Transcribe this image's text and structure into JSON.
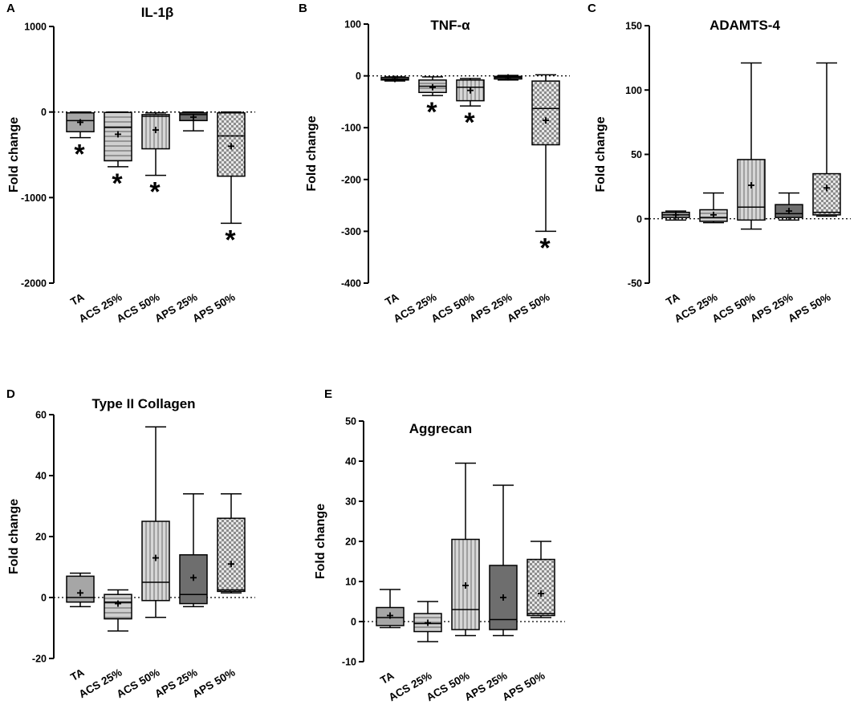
{
  "chart_data": [
    {
      "type": "box",
      "panel": "A",
      "title": "IL-1β",
      "ylabel": "Fold change",
      "xlabel": "",
      "ylim": [
        -2000,
        1000
      ],
      "yticks": [
        1000,
        0,
        -1000,
        -2000
      ],
      "yticklabels": [
        "1000",
        "0",
        "-1000",
        "-2000"
      ],
      "reference_line": 0,
      "categories": [
        "TA",
        "ACS 25%",
        "ACS 50%",
        "APS 25%",
        "APS 50%"
      ],
      "series": [
        {
          "name": "TA",
          "min": -300,
          "q1": -230,
          "median": -100,
          "q3": -10,
          "max": 0,
          "mean": -120,
          "fill": "#a6a6a6",
          "pattern": "solid",
          "significant": true
        },
        {
          "name": "ACS 25%",
          "min": -640,
          "q1": -570,
          "median": -180,
          "q3": -5,
          "max": 0,
          "mean": -260,
          "fill": "#bdbdbd",
          "pattern": "horizontal",
          "significant": true
        },
        {
          "name": "ACS 50%",
          "min": -740,
          "q1": -430,
          "median": -50,
          "q3": -30,
          "max": -10,
          "mean": -210,
          "fill": "#bdbdbd",
          "pattern": "vertical",
          "significant": true
        },
        {
          "name": "APS 25%",
          "min": -220,
          "q1": -100,
          "median": -30,
          "q3": -10,
          "max": 0,
          "mean": -60,
          "fill": "#6e6e6e",
          "pattern": "solid",
          "significant": false
        },
        {
          "name": "APS 50%",
          "min": -1300,
          "q1": -750,
          "median": -280,
          "q3": -10,
          "max": 0,
          "mean": -400,
          "fill": "#d9d9d9",
          "pattern": "checker",
          "significant": true
        }
      ]
    },
    {
      "type": "box",
      "panel": "B",
      "title": "TNF-α",
      "ylabel": "Fold change",
      "xlabel": "",
      "ylim": [
        -400,
        100
      ],
      "yticks": [
        100,
        0,
        -100,
        -200,
        -300,
        -400
      ],
      "yticklabels": [
        "100",
        "0",
        "-100",
        "-200",
        "-300",
        "-400"
      ],
      "reference_line": 0,
      "categories": [
        "TA",
        "ACS 25%",
        "ACS 50%",
        "APS 25%",
        "APS 50%"
      ],
      "series": [
        {
          "name": "TA",
          "min": -10,
          "q1": -8,
          "median": -6,
          "q3": -3,
          "max": -2,
          "mean": -6,
          "fill": "#a6a6a6",
          "pattern": "solid",
          "significant": false
        },
        {
          "name": "ACS 25%",
          "min": -38,
          "q1": -32,
          "median": -20,
          "q3": -8,
          "max": -2,
          "mean": -22,
          "fill": "#bdbdbd",
          "pattern": "horizontal",
          "significant": true
        },
        {
          "name": "ACS 50%",
          "min": -58,
          "q1": -48,
          "median": -22,
          "q3": -8,
          "max": -5,
          "mean": -28,
          "fill": "#bdbdbd",
          "pattern": "vertical",
          "significant": true
        },
        {
          "name": "APS 25%",
          "min": -8,
          "q1": -6,
          "median": -3,
          "q3": -1,
          "max": 1,
          "mean": -3,
          "fill": "#6e6e6e",
          "pattern": "solid",
          "significant": false
        },
        {
          "name": "APS 50%",
          "min": -300,
          "q1": -133,
          "median": -63,
          "q3": -10,
          "max": 2,
          "mean": -86,
          "fill": "#d9d9d9",
          "pattern": "checker",
          "significant": true
        }
      ]
    },
    {
      "type": "box",
      "panel": "C",
      "title": "ADAMTS-4",
      "ylabel": "Fold change",
      "xlabel": "",
      "ylim": [
        -50,
        150
      ],
      "yticks": [
        150,
        100,
        50,
        0,
        -50
      ],
      "yticklabels": [
        "150",
        "100",
        "50",
        "0",
        "-50"
      ],
      "reference_line": 0,
      "categories": [
        "TA",
        "ACS 25%",
        "ACS 50%",
        "APS 25%",
        "APS 50%"
      ],
      "series": [
        {
          "name": "TA",
          "min": -1,
          "q1": 1,
          "median": 3,
          "q3": 5,
          "max": 6,
          "mean": 3,
          "fill": "#a6a6a6",
          "pattern": "solid",
          "significant": false
        },
        {
          "name": "ACS 25%",
          "min": -3,
          "q1": -2,
          "median": 1,
          "q3": 7,
          "max": 20,
          "mean": 3,
          "fill": "#bdbdbd",
          "pattern": "horizontal",
          "significant": false
        },
        {
          "name": "ACS 50%",
          "min": -8,
          "q1": -1,
          "median": 9,
          "q3": 46,
          "max": 121,
          "mean": 26,
          "fill": "#bdbdbd",
          "pattern": "vertical",
          "significant": false
        },
        {
          "name": "APS 25%",
          "min": -1,
          "q1": 1,
          "median": 4,
          "q3": 11,
          "max": 20,
          "mean": 6,
          "fill": "#6e6e6e",
          "pattern": "solid",
          "significant": false
        },
        {
          "name": "APS 50%",
          "min": 2,
          "q1": 3,
          "median": 5,
          "q3": 35,
          "max": 121,
          "mean": 24,
          "fill": "#d9d9d9",
          "pattern": "checker",
          "significant": false
        }
      ]
    },
    {
      "type": "box",
      "panel": "D",
      "title": "Type II Collagen",
      "ylabel": "Fold change",
      "xlabel": "",
      "ylim": [
        -20,
        60
      ],
      "yticks": [
        60,
        40,
        20,
        0,
        -20
      ],
      "yticklabels": [
        "60",
        "40",
        "20",
        "0",
        "-20"
      ],
      "reference_line": 0,
      "categories": [
        "TA",
        "ACS 25%",
        "ACS 50%",
        "APS 25%",
        "APS 50%"
      ],
      "series": [
        {
          "name": "TA",
          "min": -3,
          "q1": -1.5,
          "median": 0,
          "q3": 7,
          "max": 8,
          "mean": 1.5,
          "fill": "#a6a6a6",
          "pattern": "solid",
          "significant": false
        },
        {
          "name": "ACS 25%",
          "min": -11,
          "q1": -7,
          "median": -1.5,
          "q3": 1,
          "max": 2.5,
          "mean": -2,
          "fill": "#bdbdbd",
          "pattern": "horizontal",
          "significant": false
        },
        {
          "name": "ACS 50%",
          "min": -6.5,
          "q1": -1,
          "median": 5,
          "q3": 25,
          "max": 56,
          "mean": 13,
          "fill": "#bdbdbd",
          "pattern": "vertical",
          "significant": false
        },
        {
          "name": "APS 25%",
          "min": -3,
          "q1": -2,
          "median": 1,
          "q3": 14,
          "max": 34,
          "mean": 6.5,
          "fill": "#6e6e6e",
          "pattern": "solid",
          "significant": false
        },
        {
          "name": "APS 50%",
          "min": 1.5,
          "q1": 2,
          "median": 2.5,
          "q3": 26,
          "max": 34,
          "mean": 11,
          "fill": "#d9d9d9",
          "pattern": "checker",
          "significant": false
        }
      ]
    },
    {
      "type": "box",
      "panel": "E",
      "title": "Aggrecan",
      "ylabel": "Fold change",
      "xlabel": "",
      "ylim": [
        -10,
        50
      ],
      "yticks": [
        50,
        40,
        30,
        20,
        10,
        0,
        -10
      ],
      "yticklabels": [
        "50",
        "40",
        "30",
        "20",
        "10",
        "0",
        "-10"
      ],
      "reference_line": 0,
      "categories": [
        "TA",
        "ACS 25%",
        "ACS 50%",
        "APS 25%",
        "APS 50%"
      ],
      "series": [
        {
          "name": "TA",
          "min": -1.5,
          "q1": -1,
          "median": 1,
          "q3": 3.5,
          "max": 8,
          "mean": 1.5,
          "fill": "#a6a6a6",
          "pattern": "solid",
          "significant": false
        },
        {
          "name": "ACS 25%",
          "min": -5,
          "q1": -2.5,
          "median": -0.5,
          "q3": 2,
          "max": 5,
          "mean": -0.3,
          "fill": "#bdbdbd",
          "pattern": "horizontal",
          "significant": false
        },
        {
          "name": "ACS 50%",
          "min": -3.5,
          "q1": -2,
          "median": 3,
          "q3": 20.5,
          "max": 39.5,
          "mean": 9,
          "fill": "#bdbdbd",
          "pattern": "vertical",
          "significant": false
        },
        {
          "name": "APS 25%",
          "min": -3.5,
          "q1": -2,
          "median": 0.5,
          "q3": 14,
          "max": 34,
          "mean": 6,
          "fill": "#6e6e6e",
          "pattern": "solid",
          "significant": false
        },
        {
          "name": "APS 50%",
          "min": 1,
          "q1": 1.5,
          "median": 2,
          "q3": 15.5,
          "max": 20,
          "mean": 7,
          "fill": "#d9d9d9",
          "pattern": "checker",
          "significant": false
        }
      ]
    }
  ],
  "significance_marker": "*",
  "mean_marker": "+"
}
